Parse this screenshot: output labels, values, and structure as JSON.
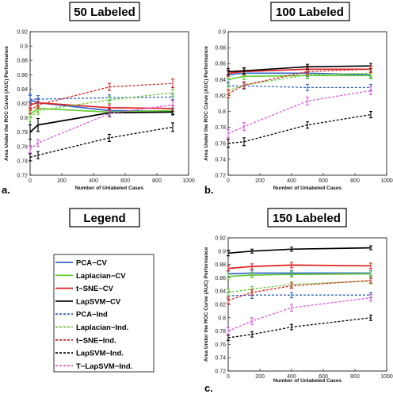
{
  "figure": {
    "legend_title": "Legend"
  },
  "colors": {
    "PCA": "#3366cc",
    "Laplacian": "#66cc33",
    "tSNE": "#dd2222",
    "LapSVM": "#000000",
    "TLapSVM": "#dd55dd"
  },
  "legend": [
    {
      "label": "PCA−CV",
      "color": "#3366cc",
      "dash": false
    },
    {
      "label": "Laplacian−CV",
      "color": "#66cc33",
      "dash": false
    },
    {
      "label": "t−SNE−CV",
      "color": "#dd2222",
      "dash": false
    },
    {
      "label": "LapSVM−CV",
      "color": "#000000",
      "dash": false
    },
    {
      "label": "PCA−Ind",
      "color": "#3366cc",
      "dash": true
    },
    {
      "label": "Laplacian−Ind.",
      "color": "#66cc33",
      "dash": true
    },
    {
      "label": "t−SNE−Ind.",
      "color": "#dd2222",
      "dash": true
    },
    {
      "label": "LapSVM−Ind.",
      "color": "#000000",
      "dash": true
    },
    {
      "label": "T−LapSVM−Ind.",
      "color": "#dd55dd",
      "dash": true
    }
  ],
  "chart_data": [
    {
      "type": "line",
      "panel": "a.",
      "title": "50 Labeled",
      "xlabel": "Number of Unlabeled Cases",
      "ylabel": "Area Under the ROC Curve (AUC) Performance",
      "xlim": [
        0,
        1000
      ],
      "ylim": [
        0.72,
        0.92
      ],
      "xticks": [
        "0",
        "200",
        "400",
        "600",
        "800",
        "1000"
      ],
      "yticks": [
        "0.72",
        "0.74",
        "0.76",
        "0.78",
        "0.8",
        "0.82",
        "0.84",
        "0.86",
        "0.88",
        "0.9",
        "0.92"
      ],
      "grid": false,
      "x": [
        0,
        50,
        500,
        900
      ],
      "series": [
        {
          "name": "PCA−CV",
          "color": "#3366cc",
          "dash": false,
          "values": [
            0.825,
            0.821,
            0.81,
            0.809
          ],
          "err": [
            0.008,
            0.006,
            0.004,
            0.004
          ]
        },
        {
          "name": "Laplacian−CV",
          "color": "#66cc33",
          "dash": false,
          "values": [
            0.805,
            0.813,
            0.808,
            0.81
          ],
          "err": [
            0.005,
            0.005,
            0.004,
            0.004
          ]
        },
        {
          "name": "t−SNE−CV",
          "color": "#dd2222",
          "dash": false,
          "values": [
            0.818,
            0.821,
            0.814,
            0.813
          ],
          "err": [
            0.005,
            0.005,
            0.004,
            0.004
          ]
        },
        {
          "name": "LapSVM−CV",
          "color": "#000000",
          "dash": false,
          "values": [
            0.78,
            0.79,
            0.807,
            0.808
          ],
          "err": [
            0.01,
            0.009,
            0.005,
            0.004
          ]
        },
        {
          "name": "PCA−Ind",
          "color": "#3366cc",
          "dash": true,
          "values": [
            0.826,
            0.826,
            0.828,
            0.829
          ],
          "err": [
            0.005,
            0.005,
            0.004,
            0.004
          ]
        },
        {
          "name": "Laplacian−Ind.",
          "color": "#66cc33",
          "dash": true,
          "values": [
            0.8,
            0.81,
            0.825,
            0.835
          ],
          "err": [
            0.005,
            0.005,
            0.005,
            0.005
          ]
        },
        {
          "name": "t−SNE−Ind.",
          "color": "#dd2222",
          "dash": true,
          "values": [
            0.81,
            0.818,
            0.843,
            0.848
          ],
          "err": [
            0.004,
            0.005,
            0.005,
            0.006
          ]
        },
        {
          "name": "LapSVM−Ind.",
          "color": "#000000",
          "dash": true,
          "values": [
            0.745,
            0.748,
            0.772,
            0.787
          ],
          "err": [
            0.005,
            0.005,
            0.005,
            0.006
          ]
        },
        {
          "name": "T−LapSVM−Ind.",
          "color": "#dd55dd",
          "dash": true,
          "values": [
            0.756,
            0.765,
            0.806,
            0.818
          ],
          "err": [
            0.005,
            0.005,
            0.005,
            0.006
          ]
        }
      ]
    },
    {
      "type": "line",
      "panel": "b.",
      "title": "100 Labeled",
      "xlabel": "Number of Unlabeled Cases",
      "ylabel": "Area Under the ROC Curve (AUC) Performance",
      "xlim": [
        0,
        1000
      ],
      "ylim": [
        0.72,
        0.9
      ],
      "xticks": [
        "0",
        "200",
        "400",
        "600",
        "800",
        "1000"
      ],
      "yticks": [
        "0.72",
        "0.74",
        "0.76",
        "0.78",
        "0.8",
        "0.82",
        "0.84",
        "0.86",
        "0.88",
        "0.9"
      ],
      "grid": false,
      "x": [
        0,
        100,
        500,
        900
      ],
      "series": [
        {
          "name": "PCA−CV",
          "color": "#3366cc",
          "dash": false,
          "values": [
            0.846,
            0.848,
            0.848,
            0.846
          ],
          "err": [
            0.005,
            0.004,
            0.004,
            0.004
          ]
        },
        {
          "name": "Laplacian−CV",
          "color": "#66cc33",
          "dash": false,
          "values": [
            0.84,
            0.844,
            0.845,
            0.845
          ],
          "err": [
            0.005,
            0.004,
            0.004,
            0.004
          ]
        },
        {
          "name": "t−SNE−CV",
          "color": "#dd2222",
          "dash": false,
          "values": [
            0.848,
            0.85,
            0.853,
            0.853
          ],
          "err": [
            0.004,
            0.004,
            0.004,
            0.004
          ]
        },
        {
          "name": "LapSVM−CV",
          "color": "#000000",
          "dash": false,
          "values": [
            0.85,
            0.851,
            0.856,
            0.857
          ],
          "err": [
            0.004,
            0.004,
            0.003,
            0.003
          ]
        },
        {
          "name": "PCA−Ind",
          "color": "#3366cc",
          "dash": true,
          "values": [
            0.832,
            0.832,
            0.83,
            0.83
          ],
          "err": [
            0.005,
            0.004,
            0.004,
            0.004
          ]
        },
        {
          "name": "Laplacian−Ind.",
          "color": "#66cc33",
          "dash": true,
          "values": [
            0.826,
            0.833,
            0.846,
            0.848
          ],
          "err": [
            0.005,
            0.004,
            0.004,
            0.004
          ]
        },
        {
          "name": "t−SNE−Ind.",
          "color": "#dd2222",
          "dash": true,
          "values": [
            0.822,
            0.833,
            0.85,
            0.853
          ],
          "err": [
            0.005,
            0.004,
            0.004,
            0.004
          ]
        },
        {
          "name": "LapSVM−Ind.",
          "color": "#000000",
          "dash": true,
          "values": [
            0.76,
            0.762,
            0.783,
            0.796
          ],
          "err": [
            0.005,
            0.005,
            0.004,
            0.004
          ]
        },
        {
          "name": "T−LapSVM−Ind.",
          "color": "#dd55dd",
          "dash": true,
          "values": [
            0.772,
            0.781,
            0.813,
            0.826
          ],
          "err": [
            0.005,
            0.005,
            0.005,
            0.005
          ]
        }
      ]
    },
    {
      "type": "line",
      "panel": "c.",
      "title": "150 Labeled",
      "xlabel": "Number of Unlabeled Cases",
      "ylabel": "Area Under the ROC Curve (AUC) Performance",
      "xlim": [
        0,
        1000
      ],
      "ylim": [
        0.72,
        0.92
      ],
      "xticks": [
        "0",
        "200",
        "400",
        "600",
        "800",
        "1000"
      ],
      "yticks": [
        "0.72",
        "0.74",
        "0.76",
        "0.78",
        "0.8",
        "0.82",
        "0.84",
        "0.86",
        "0.88",
        "0.9",
        "0.92"
      ],
      "grid": false,
      "x": [
        0,
        150,
        400,
        900
      ],
      "series": [
        {
          "name": "PCA−CV",
          "color": "#3366cc",
          "dash": false,
          "values": [
            0.866,
            0.867,
            0.867,
            0.867
          ],
          "err": [
            0.005,
            0.004,
            0.004,
            0.004
          ]
        },
        {
          "name": "Laplacian−CV",
          "color": "#66cc33",
          "dash": false,
          "values": [
            0.862,
            0.864,
            0.865,
            0.866
          ],
          "err": [
            0.005,
            0.004,
            0.004,
            0.004
          ]
        },
        {
          "name": "t−SNE−CV",
          "color": "#dd2222",
          "dash": false,
          "values": [
            0.874,
            0.877,
            0.879,
            0.878
          ],
          "err": [
            0.004,
            0.004,
            0.004,
            0.004
          ]
        },
        {
          "name": "LapSVM−CV",
          "color": "#000000",
          "dash": false,
          "values": [
            0.897,
            0.9,
            0.903,
            0.905
          ],
          "err": [
            0.004,
            0.003,
            0.003,
            0.003
          ]
        },
        {
          "name": "PCA−Ind",
          "color": "#3366cc",
          "dash": true,
          "values": [
            0.833,
            0.834,
            0.834,
            0.834
          ],
          "err": [
            0.005,
            0.005,
            0.004,
            0.004
          ]
        },
        {
          "name": "Laplacian−Ind.",
          "color": "#66cc33",
          "dash": true,
          "values": [
            0.838,
            0.843,
            0.85,
            0.855
          ],
          "err": [
            0.005,
            0.004,
            0.004,
            0.004
          ]
        },
        {
          "name": "t−SNE−Ind.",
          "color": "#dd2222",
          "dash": true,
          "values": [
            0.826,
            0.838,
            0.848,
            0.856
          ],
          "err": [
            0.005,
            0.004,
            0.004,
            0.004
          ]
        },
        {
          "name": "LapSVM−Ind.",
          "color": "#000000",
          "dash": true,
          "values": [
            0.77,
            0.775,
            0.786,
            0.8
          ],
          "err": [
            0.004,
            0.004,
            0.004,
            0.004
          ]
        },
        {
          "name": "T−LapSVM−Ind.",
          "color": "#dd55dd",
          "dash": true,
          "values": [
            0.78,
            0.795,
            0.815,
            0.83
          ],
          "err": [
            0.005,
            0.005,
            0.005,
            0.005
          ]
        }
      ]
    }
  ]
}
